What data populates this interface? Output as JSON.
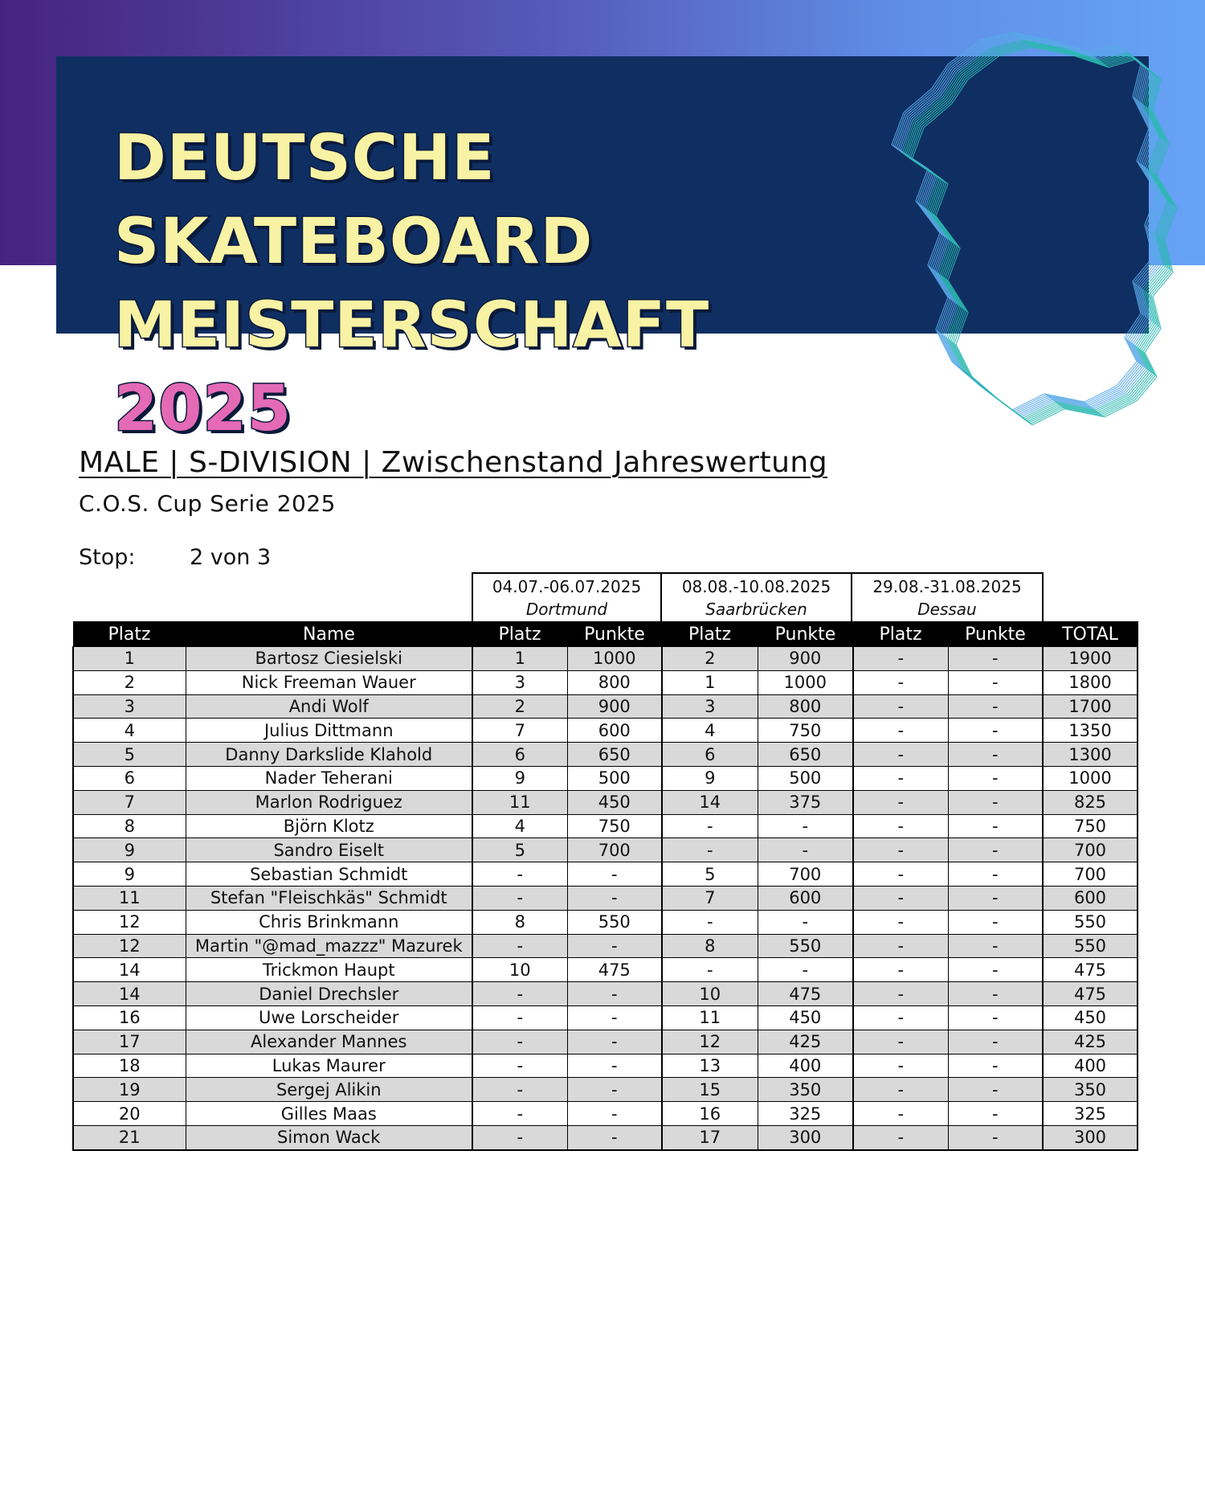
{
  "banner": {
    "title_line1": "Deutsche Skateboard",
    "title_line2": "Meisterschaft",
    "year": "2025"
  },
  "heading": "MALE | S-DIVISION | Zwischenstand Jahreswertung",
  "subheading": "C.O.S. Cup Serie 2025",
  "stop": {
    "label": "Stop:",
    "value": "2 von 3"
  },
  "events": [
    {
      "date": "04.07.-06.07.2025",
      "city": "Dortmund"
    },
    {
      "date": "08.08.-10.08.2025",
      "city": "Saarbrücken"
    },
    {
      "date": "29.08.-31.08.2025",
      "city": "Dessau"
    }
  ],
  "columns": [
    "Platz",
    "Name",
    "Platz",
    "Punkte",
    "Platz",
    "Punkte",
    "Platz",
    "Punkte",
    "TOTAL"
  ],
  "rows": [
    [
      "1",
      "Bartosz Ciesielski",
      "1",
      "1000",
      "2",
      "900",
      "-",
      "-",
      "1900"
    ],
    [
      "2",
      "Nick Freeman Wauer",
      "3",
      "800",
      "1",
      "1000",
      "-",
      "-",
      "1800"
    ],
    [
      "3",
      "Andi Wolf",
      "2",
      "900",
      "3",
      "800",
      "-",
      "-",
      "1700"
    ],
    [
      "4",
      "Julius Dittmann",
      "7",
      "600",
      "4",
      "750",
      "-",
      "-",
      "1350"
    ],
    [
      "5",
      "Danny Darkslide Klahold",
      "6",
      "650",
      "6",
      "650",
      "-",
      "-",
      "1300"
    ],
    [
      "6",
      "Nader Teherani",
      "9",
      "500",
      "9",
      "500",
      "-",
      "-",
      "1000"
    ],
    [
      "7",
      "Marlon  Rodriguez",
      "11",
      "450",
      "14",
      "375",
      "-",
      "-",
      "825"
    ],
    [
      "8",
      "Björn Klotz",
      "4",
      "750",
      "-",
      "-",
      "-",
      "-",
      "750"
    ],
    [
      "9",
      "Sandro Eiselt",
      "5",
      "700",
      "-",
      "-",
      "-",
      "-",
      "700"
    ],
    [
      "9",
      "Sebastian Schmidt",
      "-",
      "-",
      "5",
      "700",
      "-",
      "-",
      "700"
    ],
    [
      "11",
      "Stefan \"Fleischkäs\" Schmidt",
      "-",
      "-",
      "7",
      "600",
      "-",
      "-",
      "600"
    ],
    [
      "12",
      "Chris Brinkmann",
      "8",
      "550",
      "-",
      "-",
      "-",
      "-",
      "550"
    ],
    [
      "12",
      "Martin \"@mad_mazzz\" Mazurek",
      "-",
      "-",
      "8",
      "550",
      "-",
      "-",
      "550"
    ],
    [
      "14",
      "Trickmon Haupt",
      "10",
      "475",
      "-",
      "-",
      "-",
      "-",
      "475"
    ],
    [
      "14",
      "Daniel Drechsler",
      "-",
      "-",
      "10",
      "475",
      "-",
      "-",
      "475"
    ],
    [
      "16",
      "Uwe Lorscheider",
      "-",
      "-",
      "11",
      "450",
      "-",
      "-",
      "450"
    ],
    [
      "17",
      "Alexander Mannes",
      "-",
      "-",
      "12",
      "425",
      "-",
      "-",
      "425"
    ],
    [
      "18",
      "Lukas Maurer",
      "-",
      "-",
      "13",
      "400",
      "-",
      "-",
      "400"
    ],
    [
      "19",
      "Sergej Alikin",
      "-",
      "-",
      "15",
      "350",
      "-",
      "-",
      "350"
    ],
    [
      "20",
      "Gilles Maas",
      "-",
      "-",
      "16",
      "325",
      "-",
      "-",
      "325"
    ],
    [
      "21",
      "Simon Wack",
      "-",
      "-",
      "17",
      "300",
      "-",
      "-",
      "300"
    ]
  ]
}
